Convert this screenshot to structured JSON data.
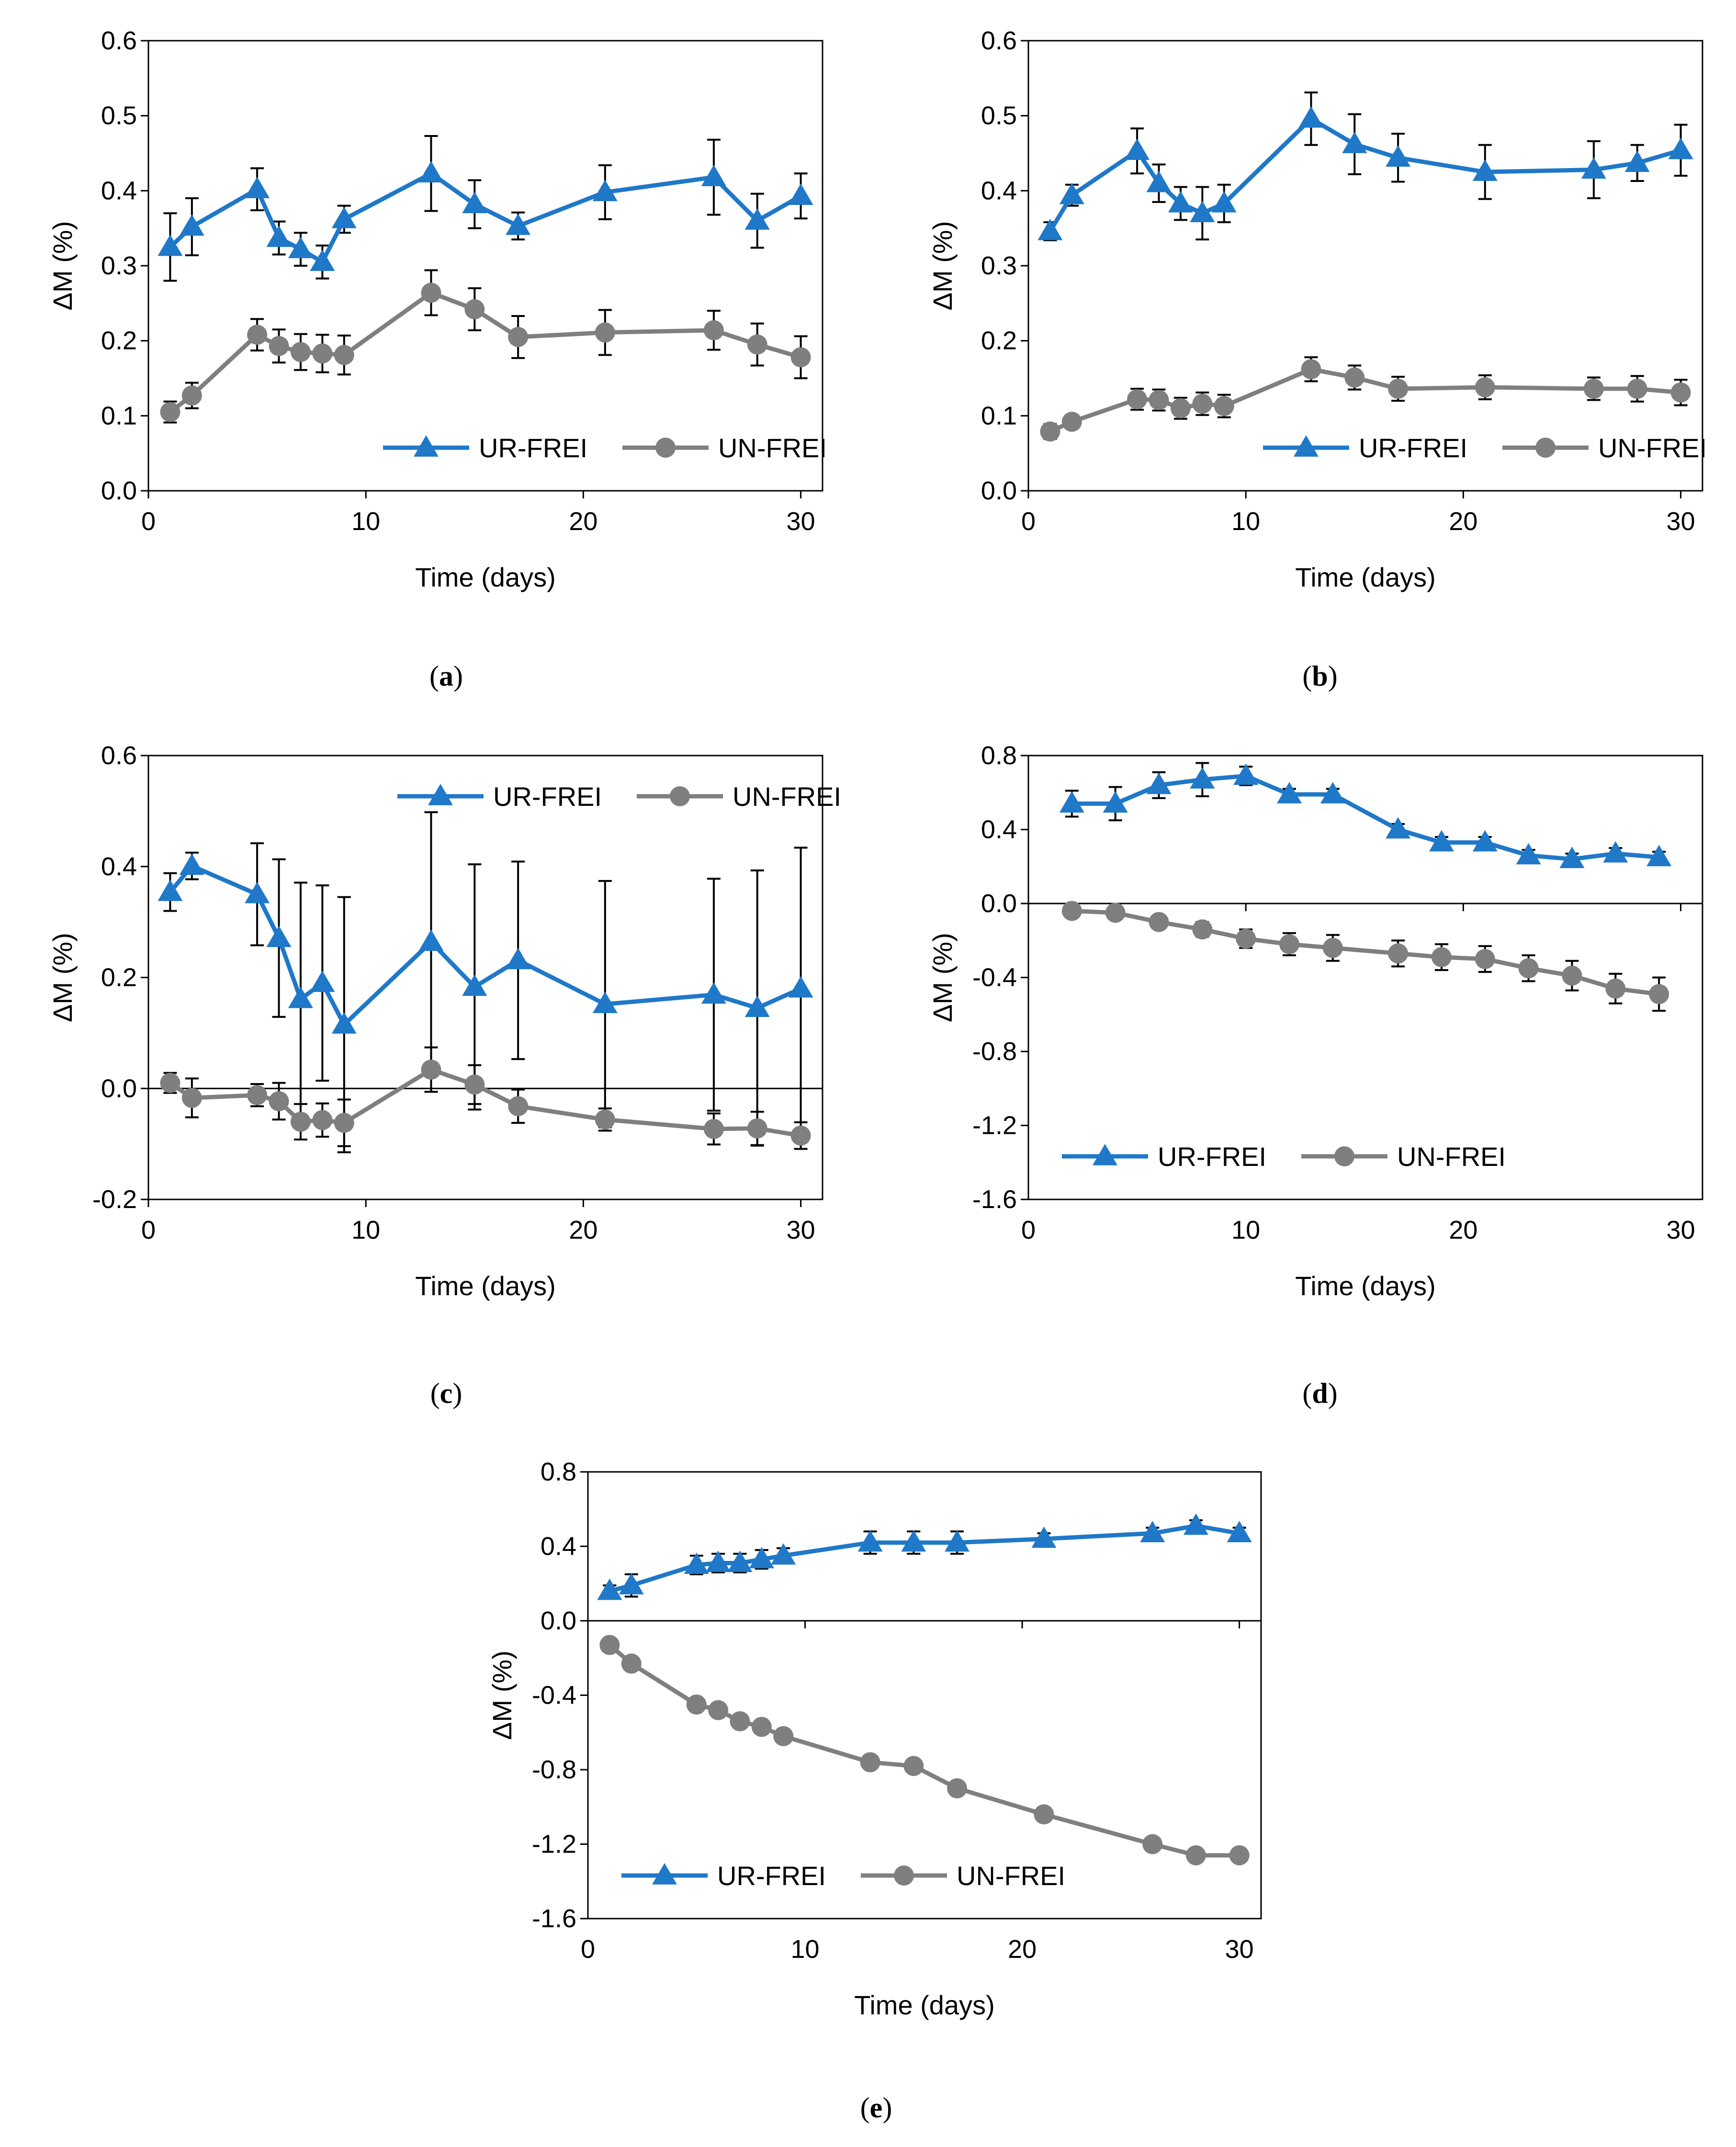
{
  "figure": {
    "colors": {
      "ur": "#1F78C8",
      "un": "#7F7F7F",
      "axis": "#000000"
    },
    "panels": [
      {
        "id": "a",
        "label": "a",
        "chart_data": {
          "type": "line",
          "xlabel": "Time (days)",
          "ylabel": "ΔM (%)",
          "xlim": [
            0,
            31
          ],
          "ylim": [
            0,
            0.6
          ],
          "xticks": [
            0,
            10,
            20,
            30
          ],
          "yticks": [
            0,
            0.1,
            0.2,
            0.3,
            0.4,
            0.5,
            0.6
          ],
          "ytick_labels": [
            "0.0",
            "0.1",
            "0.2",
            "0.3",
            "0.4",
            "0.5",
            "0.6"
          ],
          "legend": "bottom-right",
          "series": [
            {
              "name": "UR-FREI",
              "marker": "triangle",
              "x": [
                1,
                2,
                5,
                6,
                7,
                8,
                9,
                13,
                15,
                17,
                21,
                26,
                28,
                30
              ],
              "y": [
                0.325,
                0.352,
                0.402,
                0.337,
                0.322,
                0.305,
                0.362,
                0.423,
                0.382,
                0.353,
                0.398,
                0.418,
                0.36,
                0.393
              ],
              "err": [
                0.045,
                0.038,
                0.028,
                0.022,
                0.022,
                0.022,
                0.018,
                0.05,
                0.032,
                0.018,
                0.036,
                0.05,
                0.036,
                0.03
              ]
            },
            {
              "name": "UN-FREI",
              "marker": "circle",
              "x": [
                1,
                2,
                5,
                6,
                7,
                8,
                9,
                13,
                15,
                17,
                21,
                26,
                28,
                30
              ],
              "y": [
                0.105,
                0.127,
                0.208,
                0.193,
                0.185,
                0.183,
                0.181,
                0.264,
                0.242,
                0.205,
                0.211,
                0.214,
                0.195,
                0.178
              ],
              "err": [
                0.014,
                0.017,
                0.021,
                0.022,
                0.024,
                0.025,
                0.026,
                0.03,
                0.028,
                0.028,
                0.03,
                0.026,
                0.028,
                0.028
              ]
            }
          ]
        }
      },
      {
        "id": "b",
        "label": "b",
        "chart_data": {
          "type": "line",
          "xlabel": "Time (days)",
          "ylabel": "ΔM (%)",
          "xlim": [
            0,
            31
          ],
          "ylim": [
            0,
            0.6
          ],
          "xticks": [
            0,
            10,
            20,
            30
          ],
          "yticks": [
            0,
            0.1,
            0.2,
            0.3,
            0.4,
            0.5,
            0.6
          ],
          "ytick_labels": [
            "0.0",
            "0.1",
            "0.2",
            "0.3",
            "0.4",
            "0.5",
            "0.6"
          ],
          "legend": "bottom-right",
          "series": [
            {
              "name": "UR-FREI",
              "marker": "triangle",
              "x": [
                1,
                2,
                5,
                6,
                7,
                8,
                9,
                13,
                15,
                17,
                21,
                26,
                28,
                30
              ],
              "y": [
                0.346,
                0.394,
                0.453,
                0.41,
                0.383,
                0.37,
                0.383,
                0.496,
                0.462,
                0.444,
                0.425,
                0.428,
                0.437,
                0.454
              ],
              "err": [
                0.012,
                0.014,
                0.03,
                0.025,
                0.022,
                0.035,
                0.025,
                0.035,
                0.04,
                0.032,
                0.036,
                0.038,
                0.024,
                0.034
              ]
            },
            {
              "name": "UN-FREI",
              "marker": "circle",
              "x": [
                1,
                2,
                5,
                6,
                7,
                8,
                9,
                13,
                15,
                17,
                21,
                26,
                28,
                30
              ],
              "y": [
                0.079,
                0.092,
                0.122,
                0.121,
                0.11,
                0.116,
                0.113,
                0.162,
                0.151,
                0.136,
                0.138,
                0.136,
                0.136,
                0.131
              ],
              "err": [
                0.01,
                0.008,
                0.014,
                0.014,
                0.014,
                0.015,
                0.015,
                0.016,
                0.016,
                0.016,
                0.016,
                0.015,
                0.017,
                0.017
              ]
            }
          ]
        }
      },
      {
        "id": "c",
        "label": "c",
        "chart_data": {
          "type": "line",
          "xlabel": "Time (days)",
          "ylabel": "ΔM (%)",
          "xlim": [
            0,
            31
          ],
          "ylim": [
            -0.2,
            0.6
          ],
          "xticks": [
            0,
            10,
            20,
            30
          ],
          "yticks": [
            -0.2,
            0,
            0.2,
            0.4,
            0.6
          ],
          "ytick_labels": [
            "-0.2",
            "0.0",
            "0.2",
            "0.4",
            "0.6"
          ],
          "legend": "top-right",
          "series": [
            {
              "name": "UR-FREI",
              "marker": "triangle",
              "x": [
                1,
                2,
                5,
                6,
                7,
                8,
                9,
                13,
                15,
                17,
                21,
                26,
                28,
                30
              ],
              "y": [
                0.354,
                0.401,
                0.35,
                0.271,
                0.161,
                0.19,
                0.115,
                0.264,
                0.183,
                0.231,
                0.152,
                0.169,
                0.145,
                0.18
              ],
              "err": [
                0.034,
                0.024,
                0.092,
                0.142,
                0.21,
                0.176,
                0.23,
                0.234,
                0.221,
                0.178,
                0.222,
                0.209,
                0.248,
                0.254
              ]
            },
            {
              "name": "UN-FREI",
              "marker": "circle",
              "x": [
                1,
                2,
                5,
                6,
                7,
                8,
                9,
                13,
                15,
                17,
                21,
                26,
                28,
                30
              ],
              "y": [
                0.01,
                -0.017,
                -0.012,
                -0.023,
                -0.06,
                -0.057,
                -0.062,
                0.034,
                0.007,
                -0.032,
                -0.056,
                -0.073,
                -0.072,
                -0.085
              ],
              "err": [
                0.018,
                0.035,
                0.02,
                0.033,
                0.032,
                0.03,
                0.042,
                0.04,
                0.035,
                0.03,
                0.02,
                0.028,
                0.03,
                0.024
              ]
            }
          ]
        }
      },
      {
        "id": "d",
        "label": "d",
        "chart_data": {
          "type": "line",
          "xlabel": "Time (days)",
          "ylabel": "ΔM (%)",
          "xlim": [
            0,
            31
          ],
          "ylim": [
            -1.6,
            0.8
          ],
          "xticks": [
            0,
            10,
            20,
            30
          ],
          "yticks": [
            -1.6,
            -1.2,
            -0.8,
            -0.4,
            0,
            0.4,
            0.8
          ],
          "ytick_labels": [
            "-1.6",
            "-1.2",
            "-0.8",
            "-0.4",
            "0.0",
            "0.4",
            "0.8"
          ],
          "legend": "bottom-left",
          "series": [
            {
              "name": "UR-FREI",
              "marker": "triangle",
              "x": [
                2,
                4,
                6,
                8,
                10,
                12,
                14,
                17,
                19,
                21,
                23,
                25,
                27,
                29
              ],
              "y": [
                0.54,
                0.54,
                0.64,
                0.67,
                0.69,
                0.59,
                0.59,
                0.4,
                0.33,
                0.33,
                0.26,
                0.24,
                0.27,
                0.25
              ],
              "err": [
                0.07,
                0.09,
                0.07,
                0.09,
                0.05,
                0.03,
                0.03,
                0.03,
                0.03,
                0.03,
                0.03,
                0.03,
                0.03,
                0.03
              ]
            },
            {
              "name": "UN-FREI",
              "marker": "circle",
              "x": [
                2,
                4,
                6,
                8,
                10,
                12,
                14,
                17,
                19,
                21,
                23,
                25,
                27,
                29
              ],
              "y": [
                -0.04,
                -0.05,
                -0.1,
                -0.14,
                -0.19,
                -0.22,
                -0.24,
                -0.27,
                -0.29,
                -0.3,
                -0.35,
                -0.39,
                -0.46,
                -0.49
              ],
              "err": [
                0.02,
                0.02,
                0.03,
                0.04,
                0.05,
                0.06,
                0.07,
                0.07,
                0.07,
                0.07,
                0.07,
                0.08,
                0.08,
                0.09
              ]
            }
          ]
        }
      },
      {
        "id": "e",
        "label": "e",
        "chart_data": {
          "type": "line",
          "xlabel": "Time (days)",
          "ylabel": "ΔM (%)",
          "xlim": [
            0,
            31
          ],
          "ylim": [
            -1.6,
            0.8
          ],
          "xticks": [
            0,
            10,
            20,
            30
          ],
          "yticks": [
            -1.6,
            -1.2,
            -0.8,
            -0.4,
            0,
            0.4,
            0.8
          ],
          "ytick_labels": [
            "-1.6",
            "-1.2",
            "-0.8",
            "-0.4",
            "0.0",
            "0.4",
            "0.8"
          ],
          "legend": "bottom-left",
          "series": [
            {
              "name": "UR-FREI",
              "marker": "triangle",
              "x": [
                1,
                2,
                5,
                6,
                7,
                8,
                9,
                13,
                15,
                17,
                21,
                26,
                28,
                30
              ],
              "y": [
                0.16,
                0.19,
                0.3,
                0.31,
                0.31,
                0.33,
                0.35,
                0.42,
                0.42,
                0.42,
                0.44,
                0.47,
                0.51,
                0.47
              ],
              "err": [
                0.03,
                0.06,
                0.05,
                0.05,
                0.05,
                0.05,
                0.04,
                0.06,
                0.06,
                0.06,
                0.03,
                0.03,
                0.03,
                0.03
              ]
            },
            {
              "name": "UN-FREI",
              "marker": "circle",
              "x": [
                1,
                2,
                5,
                6,
                7,
                8,
                9,
                13,
                15,
                17,
                21,
                26,
                28,
                30
              ],
              "y": [
                -0.13,
                -0.23,
                -0.45,
                -0.48,
                -0.54,
                -0.57,
                -0.62,
                -0.76,
                -0.78,
                -0.9,
                -1.04,
                -1.2,
                -1.26,
                -1.26
              ],
              "err": [
                0.03,
                0.03,
                0.03,
                0.03,
                0.03,
                0.03,
                0.02,
                0.02,
                0.03,
                0.02,
                0.02,
                0.03,
                0.03,
                0.03
              ]
            }
          ]
        }
      }
    ]
  }
}
